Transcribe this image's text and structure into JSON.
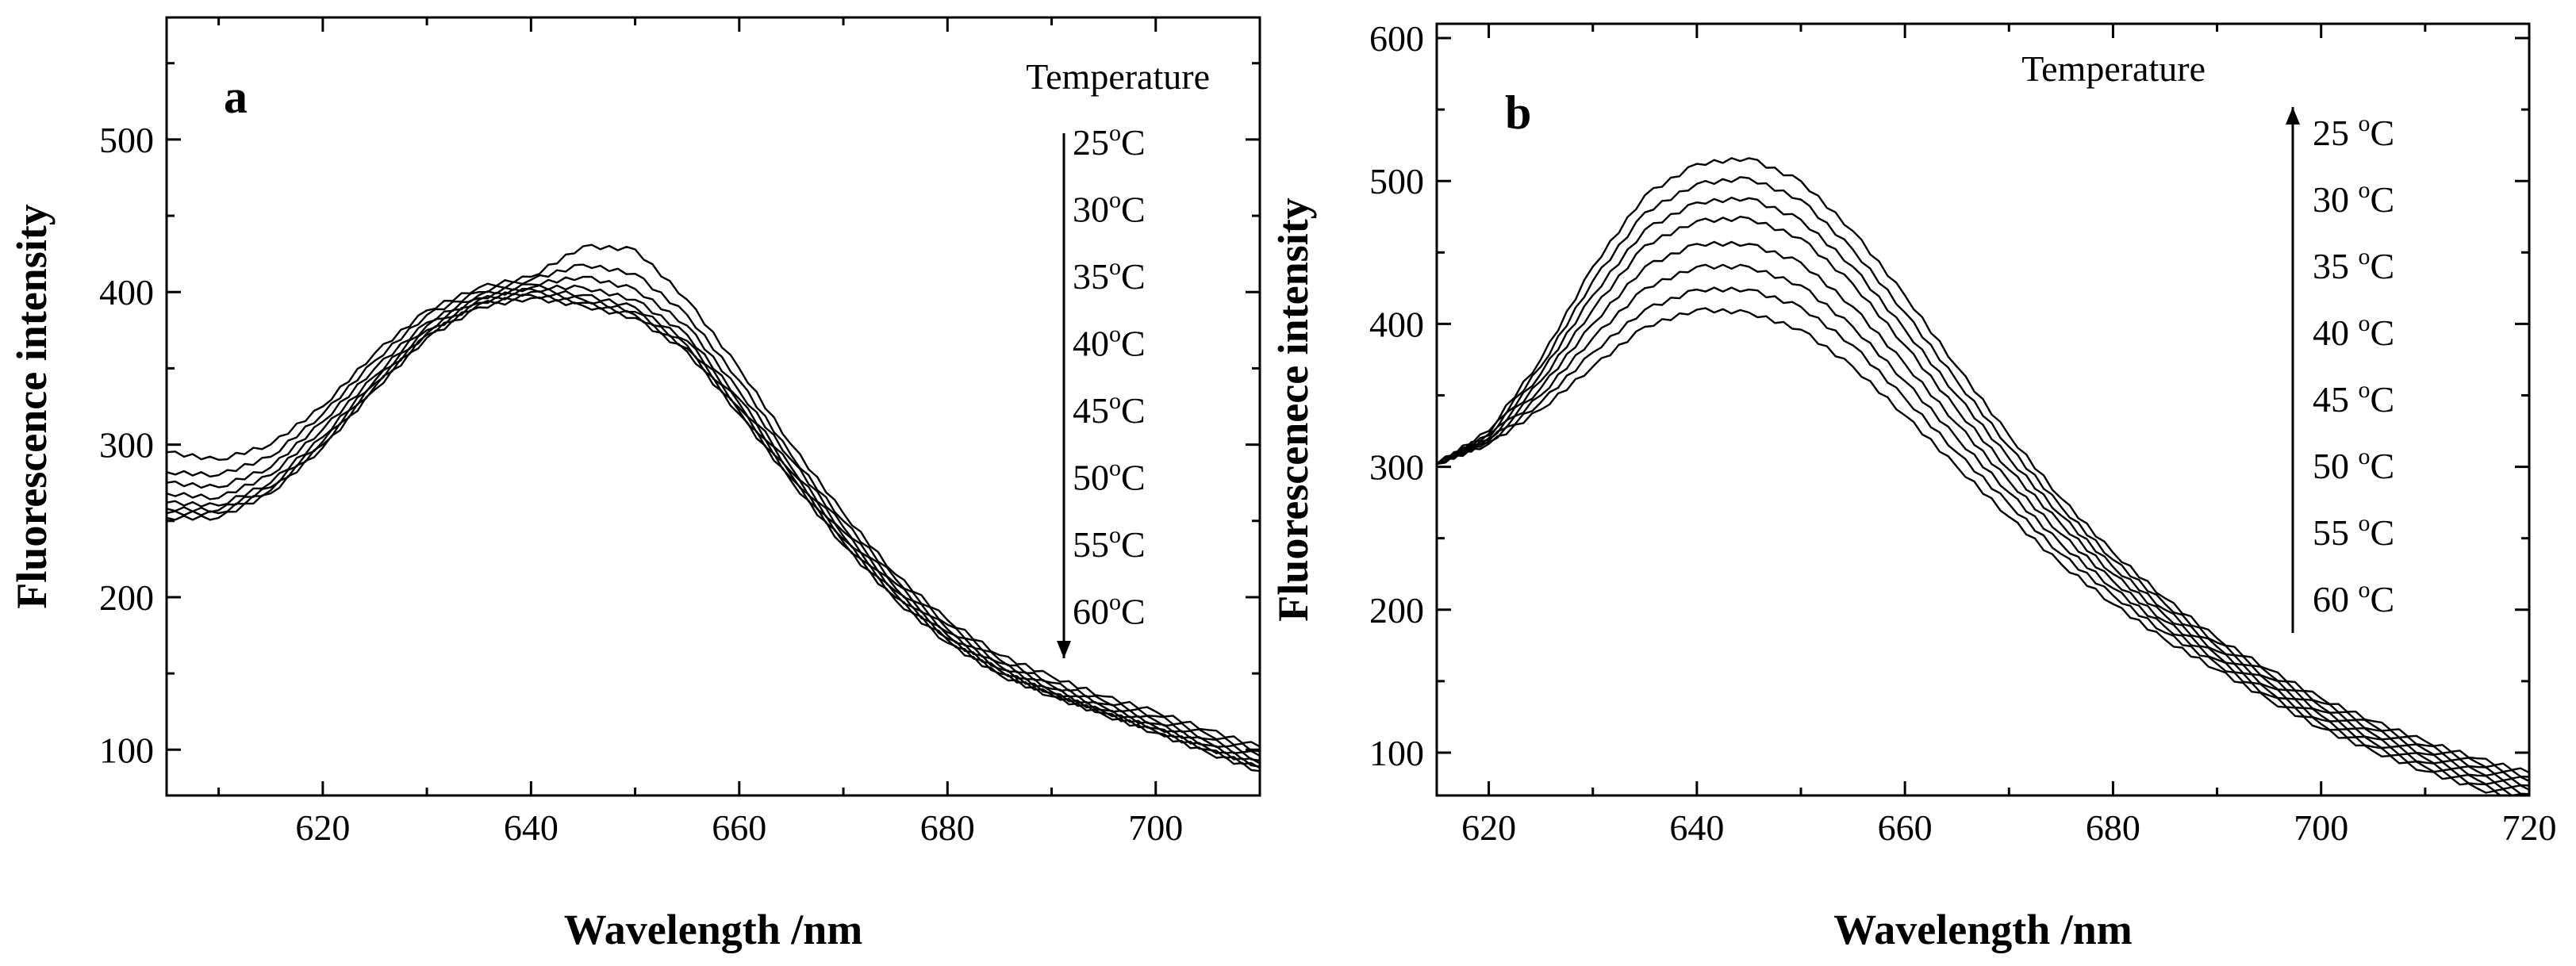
{
  "chart_data": [
    {
      "type": "line",
      "panel_label": "a",
      "xlabel": "Wavelength /nm",
      "ylabel": "Fluorescence intensity",
      "xlim": [
        605,
        710
      ],
      "ylim": [
        70,
        580
      ],
      "x_ticks": [
        620,
        640,
        660,
        680,
        700
      ],
      "y_ticks": [
        100,
        200,
        300,
        400,
        500
      ],
      "legend_title": "Temperature",
      "legend_arrow": "down",
      "legend_placement": "top-right",
      "x": [
        605,
        610,
        615,
        620,
        625,
        630,
        635,
        640,
        645,
        650,
        655,
        660,
        665,
        670,
        675,
        680,
        685,
        690,
        695,
        700,
        705,
        710
      ],
      "series": [
        {
          "name": "25oC",
          "label_main": "25",
          "label_sup": "o",
          "label_unit": "C",
          "values": [
            295,
            290,
            300,
            325,
            360,
            388,
            403,
            410,
            430,
            428,
            395,
            350,
            300,
            255,
            215,
            185,
            162,
            148,
            135,
            125,
            113,
            102
          ]
        },
        {
          "name": "30oC",
          "label_main": "30",
          "label_sup": "o",
          "label_unit": "C",
          "values": [
            282,
            280,
            292,
            320,
            355,
            385,
            400,
            408,
            418,
            412,
            385,
            342,
            293,
            250,
            212,
            182,
            159,
            144,
            132,
            122,
            110,
            99
          ]
        },
        {
          "name": "35oC",
          "label_main": "35",
          "label_sup": "o",
          "label_unit": "C",
          "values": [
            275,
            272,
            285,
            315,
            350,
            380,
            398,
            405,
            410,
            402,
            378,
            335,
            290,
            246,
            209,
            179,
            157,
            142,
            130,
            119,
            107,
            96
          ]
        },
        {
          "name": "40oC",
          "label_main": "40",
          "label_sup": "o",
          "label_unit": "C",
          "values": [
            268,
            265,
            280,
            310,
            345,
            378,
            396,
            403,
            403,
            395,
            372,
            330,
            285,
            243,
            206,
            177,
            155,
            140,
            128,
            117,
            105,
            93
          ]
        },
        {
          "name": "45oC",
          "label_main": "45",
          "label_sup": "o",
          "label_unit": "C",
          "values": [
            262,
            260,
            275,
            305,
            342,
            375,
            395,
            402,
            398,
            390,
            368,
            327,
            282,
            240,
            204,
            175,
            153,
            138,
            126,
            115,
            103,
            91
          ]
        },
        {
          "name": "50oC",
          "label_main": "50",
          "label_sup": "o",
          "label_unit": "C",
          "values": [
            258,
            257,
            272,
            302,
            340,
            373,
            393,
            400,
            395,
            387,
            365,
            324,
            280,
            238,
            202,
            173,
            152,
            137,
            125,
            114,
            101,
            89
          ]
        },
        {
          "name": "55oC",
          "label_main": "55",
          "label_sup": "o",
          "label_unit": "C",
          "values": [
            255,
            255,
            270,
            300,
            338,
            372,
            392,
            398,
            393,
            385,
            363,
            322,
            278,
            236,
            200,
            172,
            150,
            136,
            124,
            112,
            100,
            88
          ]
        },
        {
          "name": "60oC",
          "label_main": "60",
          "label_sup": "o",
          "label_unit": "C",
          "values": [
            252,
            252,
            268,
            298,
            336,
            370,
            390,
            396,
            391,
            383,
            361,
            320,
            276,
            234,
            198,
            170,
            149,
            135,
            123,
            111,
            98,
            86
          ]
        }
      ]
    },
    {
      "type": "line",
      "panel_label": "b",
      "xlabel": "Wavelength /nm",
      "ylabel": "Fluorescenece intensity",
      "xlim": [
        615,
        720
      ],
      "ylim": [
        70,
        610
      ],
      "x_ticks": [
        620,
        640,
        660,
        680,
        700,
        720
      ],
      "y_ticks": [
        100,
        200,
        300,
        400,
        500,
        600
      ],
      "legend_title": "Temperature",
      "legend_arrow": "up",
      "legend_placement": "top-right",
      "x": [
        615,
        620,
        625,
        630,
        635,
        640,
        645,
        650,
        655,
        660,
        665,
        670,
        675,
        680,
        685,
        690,
        695,
        700,
        705,
        710,
        715,
        720
      ],
      "series": [
        {
          "name": "25 oC",
          "label_main": "25 ",
          "label_sup": "o",
          "label_unit": "C",
          "values": [
            302,
            325,
            375,
            440,
            490,
            512,
            516,
            500,
            465,
            420,
            370,
            322,
            278,
            240,
            208,
            180,
            158,
            138,
            122,
            108,
            96,
            86
          ]
        },
        {
          "name": "30 oC",
          "label_main": "30 ",
          "label_sup": "o",
          "label_unit": "C",
          "values": [
            302,
            323,
            370,
            430,
            478,
            498,
            502,
            487,
            452,
            408,
            360,
            314,
            272,
            235,
            204,
            177,
            155,
            135,
            119,
            105,
            93,
            83
          ]
        },
        {
          "name": "35 oC",
          "label_main": "35 ",
          "label_sup": "o",
          "label_unit": "C",
          "values": [
            302,
            322,
            365,
            420,
            466,
            485,
            488,
            473,
            440,
            396,
            350,
            306,
            266,
            230,
            200,
            174,
            152,
            132,
            116,
            102,
            90,
            80
          ]
        },
        {
          "name": "40 oC",
          "label_main": "40 ",
          "label_sup": "o",
          "label_unit": "C",
          "values": [
            302,
            320,
            360,
            410,
            455,
            472,
            474,
            460,
            428,
            385,
            340,
            298,
            260,
            225,
            196,
            171,
            149,
            129,
            113,
            99,
            87,
            77
          ]
        },
        {
          "name": "45 oC",
          "label_main": "45 ",
          "label_sup": "o",
          "label_unit": "C",
          "values": [
            302,
            319,
            355,
            400,
            440,
            456,
            456,
            443,
            412,
            372,
            330,
            290,
            253,
            220,
            192,
            168,
            146,
            126,
            110,
            96,
            84,
            74
          ]
        },
        {
          "name": "50 oC",
          "label_main": "50 ",
          "label_sup": "o",
          "label_unit": "C",
          "values": [
            302,
            318,
            350,
            390,
            425,
            440,
            440,
            427,
            398,
            360,
            320,
            282,
            246,
            215,
            188,
            165,
            143,
            123,
            107,
            93,
            81,
            71
          ]
        },
        {
          "name": "55 oC",
          "label_main": "55 ",
          "label_sup": "o",
          "label_unit": "C",
          "values": [
            302,
            317,
            345,
            380,
            410,
            424,
            424,
            412,
            385,
            348,
            310,
            274,
            239,
            210,
            184,
            162,
            140,
            120,
            104,
            90,
            78,
            68
          ]
        },
        {
          "name": "60 oC",
          "label_main": "60 ",
          "label_sup": "o",
          "label_unit": "C",
          "values": [
            302,
            316,
            340,
            370,
            398,
            410,
            408,
            396,
            370,
            336,
            300,
            265,
            232,
            204,
            179,
            158,
            137,
            117,
            101,
            87,
            75,
            65
          ]
        }
      ]
    }
  ]
}
